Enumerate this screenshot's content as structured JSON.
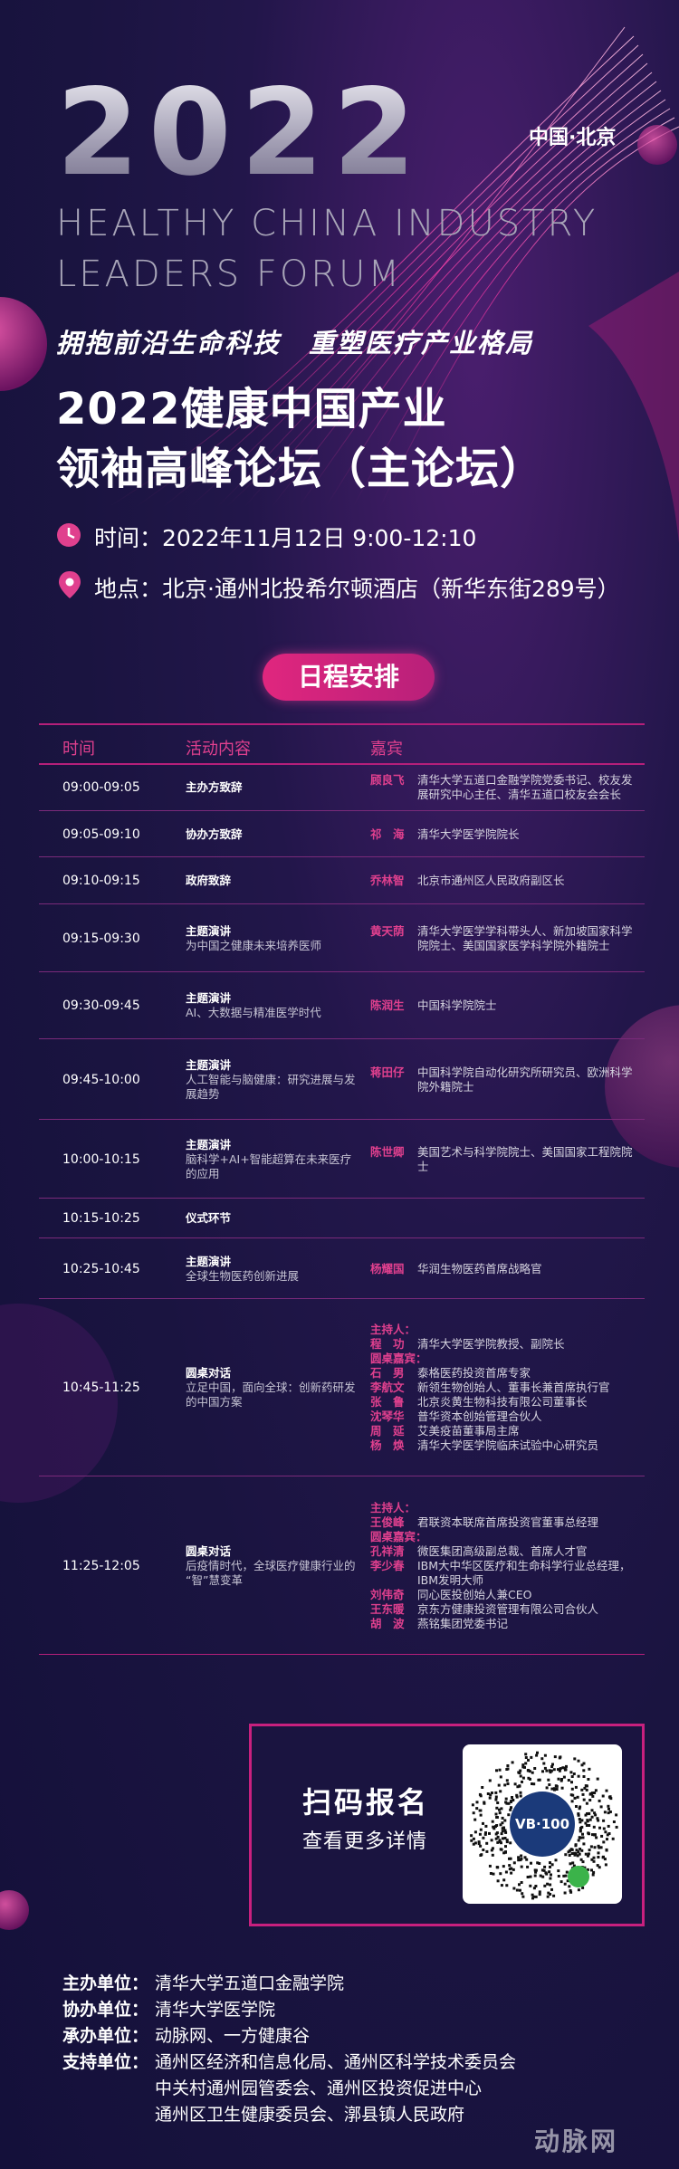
{
  "header": {
    "year": "2022",
    "location": "中国·北京",
    "english_line1": "HEALTHY CHINA INDUSTRY",
    "english_line2": "LEADERS FORUM",
    "slogan": "拥抱前沿生命科技　重塑医疗产业格局",
    "title_line1": "2022健康中国产业",
    "title_line2": "领袖高峰论坛（主论坛）",
    "time": "时间：2022年11月12日  9:00-12:10",
    "place": "地点：北京·通州北投希尔顿酒店（新华东街289号）"
  },
  "schedule": {
    "heading": "日程安排",
    "columns": [
      "时间",
      "活动内容",
      "嘉宾"
    ],
    "rows": [
      {
        "time": "09:00-09:05",
        "activity": "主办方致辞",
        "speakers": [
          {
            "name": "顾良飞",
            "title": "清华大学五道口金融学院党委书记、校友发展研究中心主任、清华五道口校友会会长"
          }
        ]
      },
      {
        "time": "09:05-09:10",
        "activity": "协办方致辞",
        "speakers": [
          {
            "name": "祁　海",
            "title": "清华大学医学院院长"
          }
        ]
      },
      {
        "time": "09:10-09:15",
        "activity": "政府致辞",
        "speakers": [
          {
            "name": "乔林智",
            "title": "北京市通州区人民政府副区长"
          }
        ]
      },
      {
        "time": "09:15-09:30",
        "activity": "主题演讲",
        "topic": "为中国之健康未来培养医师",
        "speakers": [
          {
            "name": "黄天荫",
            "title": "清华大学医学学科带头人、新加坡国家科学院院士、美国国家医学科学院外籍院士"
          }
        ]
      },
      {
        "time": "09:30-09:45",
        "activity": "主题演讲",
        "topic": "AI、大数据与精准医学时代",
        "speakers": [
          {
            "name": "陈润生",
            "title": "中国科学院院士"
          }
        ]
      },
      {
        "time": "09:45-10:00",
        "activity": "主题演讲",
        "topic": "人工智能与脑健康：研究进展与发展趋势",
        "speakers": [
          {
            "name": "蒋田仔",
            "title": "中国科学院自动化研究所研究员、欧洲科学院外籍院士"
          }
        ]
      },
      {
        "time": "10:00-10:15",
        "activity": "主题演讲",
        "topic": "脑科学+AI+智能超算在未来医疗的应用",
        "speakers": [
          {
            "name": "陈世卿",
            "title": "美国艺术与科学院院士、美国国家工程院院士"
          }
        ]
      },
      {
        "time": "10:15-10:25",
        "activity": "仪式环节"
      },
      {
        "time": "10:25-10:45",
        "activity": "主题演讲",
        "topic": "全球生物医药创新进展",
        "speakers": [
          {
            "name": "杨耀国",
            "title": "华润生物医药首席战略官"
          }
        ]
      },
      {
        "time": "10:45-11:25",
        "activity": "圆桌对话",
        "topic": "立足中国，面向全球：创新药研发的中国方案",
        "groups": [
          {
            "role": "主持人：",
            "speakers": [
              {
                "name": "程　功",
                "title": "清华大学医学院教授、副院长"
              }
            ]
          },
          {
            "role": "圆桌嘉宾：",
            "speakers": [
              {
                "name": "石　男",
                "title": "泰格医药投资首席专家"
              },
              {
                "name": "李航文",
                "title": "新领生物创始人、董事长兼首席执行官"
              },
              {
                "name": "张　鲁",
                "title": "北京炎黄生物科技有限公司董事长"
              },
              {
                "name": "沈琴华",
                "title": "普华资本创始管理合伙人"
              },
              {
                "name": "周　延",
                "title": "艾美疫苗董事局主席"
              },
              {
                "name": "杨　焕",
                "title": "清华大学医学院临床试验中心研究员"
              }
            ]
          }
        ]
      },
      {
        "time": "11:25-12:05",
        "activity": "圆桌对话",
        "topic": "后疫情时代，全球医疗健康行业的“智”慧变革",
        "groups": [
          {
            "role": "主持人：",
            "speakers": [
              {
                "name": "王俊峰",
                "title": "君联资本联席首席投资官董事总经理"
              }
            ]
          },
          {
            "role": "圆桌嘉宾：",
            "speakers": [
              {
                "name": "孔祥清",
                "title": "微医集团高级副总裁、首席人才官"
              },
              {
                "name": "李少春",
                "title": "IBM大中华区医疗和生命科学行业总经理，IBM发明大师"
              },
              {
                "name": "刘伟奇",
                "title": "同心医投创始人兼CEO"
              },
              {
                "name": "王东暖",
                "title": "京东方健康投资管理有限公司合伙人"
              },
              {
                "name": "胡　波",
                "title": "燕铭集团党委书记"
              }
            ]
          }
        ]
      }
    ]
  },
  "signup": {
    "title": "扫码报名",
    "subtitle": "查看更多详情",
    "logo": "VB·100"
  },
  "organizers": [
    {
      "label": "主办单位：",
      "lines": [
        "清华大学五道口金融学院"
      ]
    },
    {
      "label": "协办单位：",
      "lines": [
        "清华大学医学院"
      ]
    },
    {
      "label": "承办单位：",
      "lines": [
        "动脉网、一方健康谷"
      ]
    },
    {
      "label": "支持单位：",
      "lines": [
        "通州区经济和信息化局、通州区科学技术委员会",
        "中关村通州园管委会、通州区投资促进中心",
        "通州区卫生健康委员会、漷县镇人民政府"
      ]
    }
  ],
  "watermark": "动脉网"
}
